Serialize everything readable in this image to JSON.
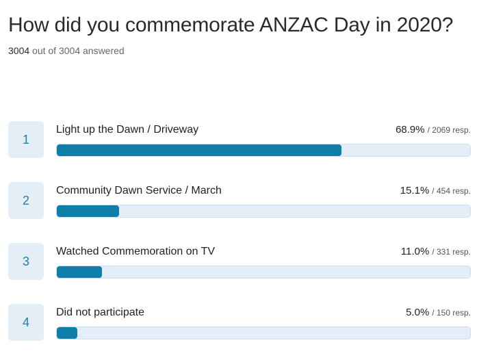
{
  "title": "How did you commemorate ANZAC Day in 2020?",
  "answered": {
    "count": "3004",
    "suffix": "out of 3004 answered"
  },
  "colors": {
    "bar_fill": "#0f7ea9",
    "bar_track": "#e4eef8",
    "rank_box": "#e4eef6",
    "rank_text": "#1f7fa6"
  },
  "chart_data": {
    "type": "bar",
    "orientation": "horizontal",
    "title": "How did you commemorate ANZAC Day in 2020?",
    "categories": [
      "Light up the Dawn / Driveway",
      "Community Dawn Service / March",
      "Watched Commemoration on TV",
      "Did not participate"
    ],
    "values": [
      68.9,
      15.1,
      11.0,
      5.0
    ],
    "responses": [
      2069,
      454,
      331,
      150
    ],
    "xlim": [
      0,
      100
    ]
  },
  "options": [
    {
      "rank": "1",
      "label": "Light up the Dawn / Driveway",
      "percent": "68.9%",
      "responses": "/ 2069 resp.",
      "value": 68.9
    },
    {
      "rank": "2",
      "label": "Community Dawn Service / March",
      "percent": "15.1%",
      "responses": "/ 454 resp.",
      "value": 15.1
    },
    {
      "rank": "3",
      "label": "Watched Commemoration on TV",
      "percent": "11.0%",
      "responses": "/ 331 resp.",
      "value": 11.0
    },
    {
      "rank": "4",
      "label": "Did not participate",
      "percent": "5.0%",
      "responses": "/ 150 resp.",
      "value": 5.0
    }
  ]
}
